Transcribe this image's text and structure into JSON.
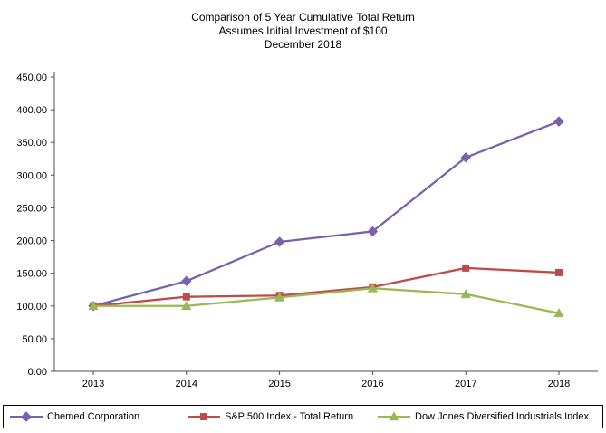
{
  "title_lines": [
    "Comparison of 5 Year Cumulative Total Return",
    "Assumes Initial Investment of $100",
    "December 2018"
  ],
  "chart_data": {
    "type": "line",
    "x": [
      "2013",
      "2014",
      "2015",
      "2016",
      "2017",
      "2018"
    ],
    "series": [
      {
        "name": "Chemed Corporation",
        "color": "#7862AB",
        "marker": "diamond",
        "values": [
          100,
          138,
          198,
          214,
          327,
          382
        ]
      },
      {
        "name": "S&P 500 Index - Total Return",
        "color": "#BE4B48",
        "marker": "square",
        "values": [
          100,
          114,
          116,
          129,
          158,
          151
        ]
      },
      {
        "name": "Dow Jones Diversified Industrials Index",
        "color": "#98B954",
        "marker": "triangle",
        "values": [
          100,
          100,
          113,
          127,
          118,
          89
        ]
      }
    ],
    "ylim": [
      0,
      450
    ],
    "ytick_step": 50,
    "ytick_labels": [
      "0.00",
      "50.00",
      "100.00",
      "150.00",
      "200.00",
      "250.00",
      "300.00",
      "350.00",
      "400.00",
      "450.00"
    ],
    "grid": false,
    "legend_position": "bottom"
  }
}
